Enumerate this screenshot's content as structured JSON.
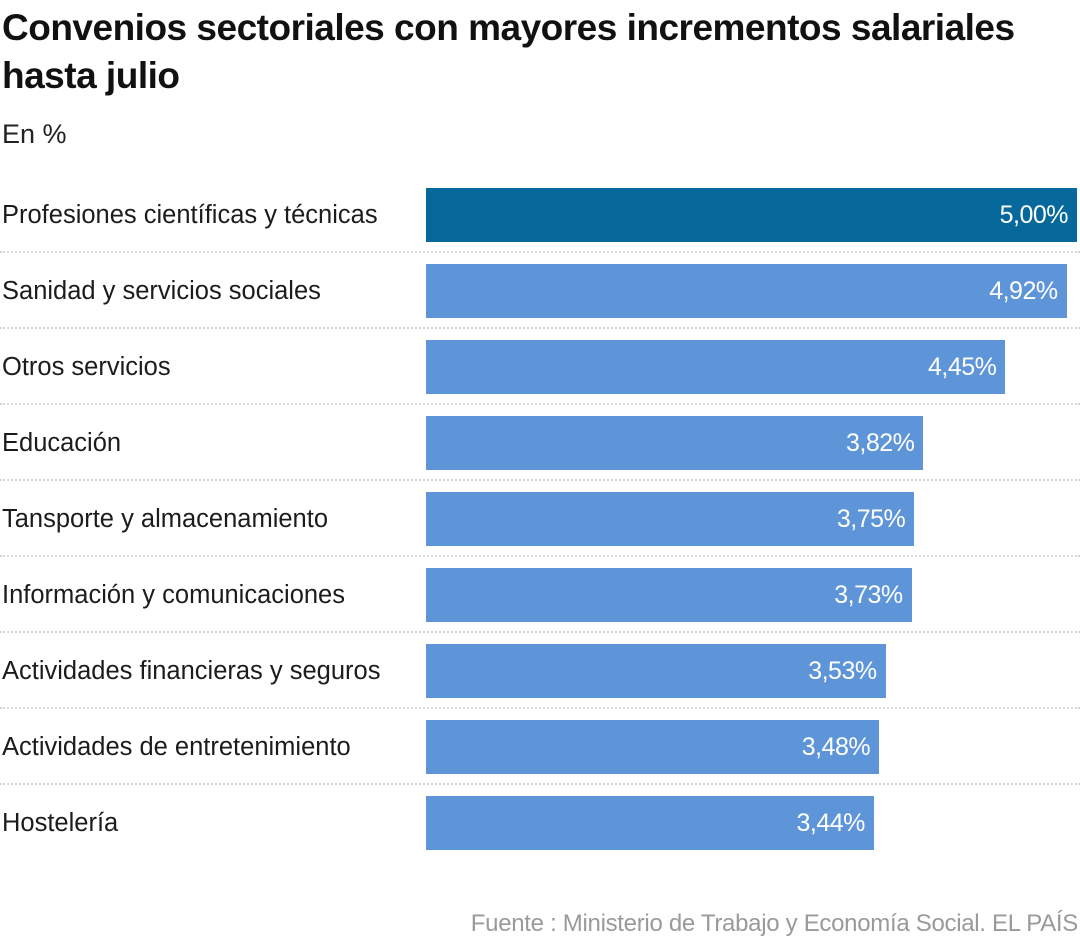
{
  "header": {
    "title": "Convenios sectoriales con mayores incrementos salariales hasta julio",
    "subtitle": "En %"
  },
  "colors": {
    "highlight": "#07699b",
    "bar": "#5e95d9",
    "separator": "#d6d6d6",
    "source_text": "#9a9a9a"
  },
  "chart_data": {
    "type": "bar",
    "orientation": "horizontal",
    "title": "Convenios sectoriales con mayores incrementos salariales hasta julio",
    "subtitle": "En %",
    "xlabel": "",
    "ylabel": "",
    "xlim": [
      0,
      5
    ],
    "grid": false,
    "legend": "none",
    "categories": [
      "Profesiones científicas y técnicas",
      "Sanidad y servicios sociales",
      "Otros servicios",
      "Educación",
      "Tansporte y almacenamiento",
      "Información y comunicaciones",
      "Actividades financieras y seguros",
      "Actividades de entretenimiento",
      "Hostelería"
    ],
    "values": [
      5.0,
      4.92,
      4.45,
      3.82,
      3.75,
      3.73,
      3.53,
      3.48,
      3.44
    ],
    "data_labels": [
      "5,00%",
      "4,92%",
      "4,45%",
      "3,82%",
      "3,75%",
      "3,73%",
      "3,53%",
      "3,48%",
      "3,44%"
    ],
    "highlighted_index": 0,
    "source": "Fuente : Ministerio de Trabajo y Economía Social. EL PAÍS"
  },
  "footer": {
    "source": "Fuente : Ministerio de Trabajo y Economía Social. EL PAÍS"
  }
}
